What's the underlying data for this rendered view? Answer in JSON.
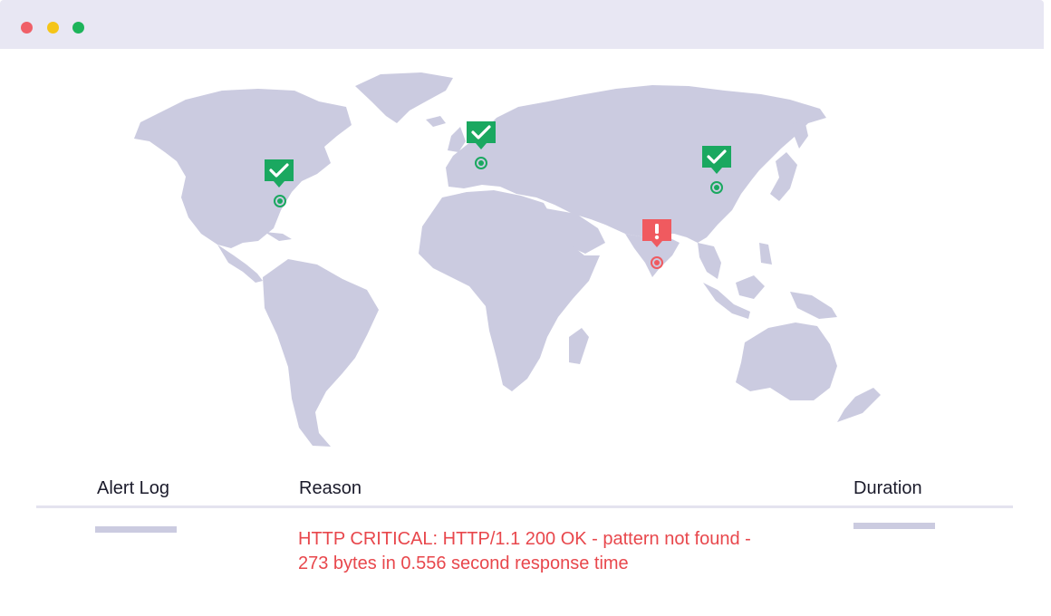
{
  "window": {
    "controls": [
      "close",
      "minimize",
      "maximize"
    ],
    "colors": {
      "close": "#f06068",
      "minimize": "#f5c518",
      "maximize": "#1db45a"
    }
  },
  "map": {
    "land_color": "#cbcbe0",
    "markers": [
      {
        "region": "North America (US East Coast)",
        "status": "ok",
        "icon": "checkmark-icon",
        "color": "#1aa860"
      },
      {
        "region": "Europe",
        "status": "ok",
        "icon": "checkmark-icon",
        "color": "#1aa860"
      },
      {
        "region": "China",
        "status": "ok",
        "icon": "checkmark-icon",
        "color": "#1aa860"
      },
      {
        "region": "India",
        "status": "critical",
        "icon": "exclamation-icon",
        "color": "#f05a5f"
      }
    ]
  },
  "alert_table": {
    "headers": {
      "alert_log": "Alert Log",
      "reason": "Reason",
      "duration": "Duration"
    },
    "row": {
      "reason_line1": "HTTP CRITICAL: HTTP/1.1 200 OK - pattern not found -",
      "reason_line2": "273 bytes in 0.556 second response time",
      "reason_color": "#e8474c"
    }
  }
}
